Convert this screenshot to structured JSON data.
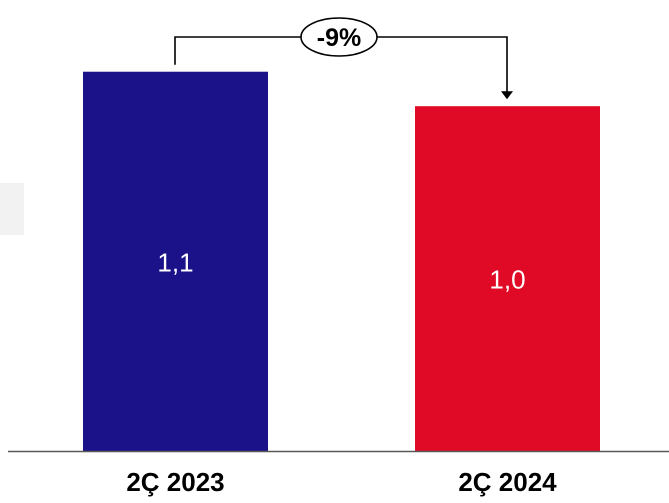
{
  "chart_data": {
    "type": "bar",
    "categories": [
      "2Ç 2023",
      "2Ç 2024"
    ],
    "values": [
      1.1,
      1.0
    ],
    "value_labels": [
      "1,1",
      "1,0"
    ],
    "colors": [
      "#1b128a",
      "#e00a26"
    ],
    "change_label": "-9%",
    "ylim": [
      0,
      1.25
    ],
    "grid": false,
    "legend": "none"
  }
}
